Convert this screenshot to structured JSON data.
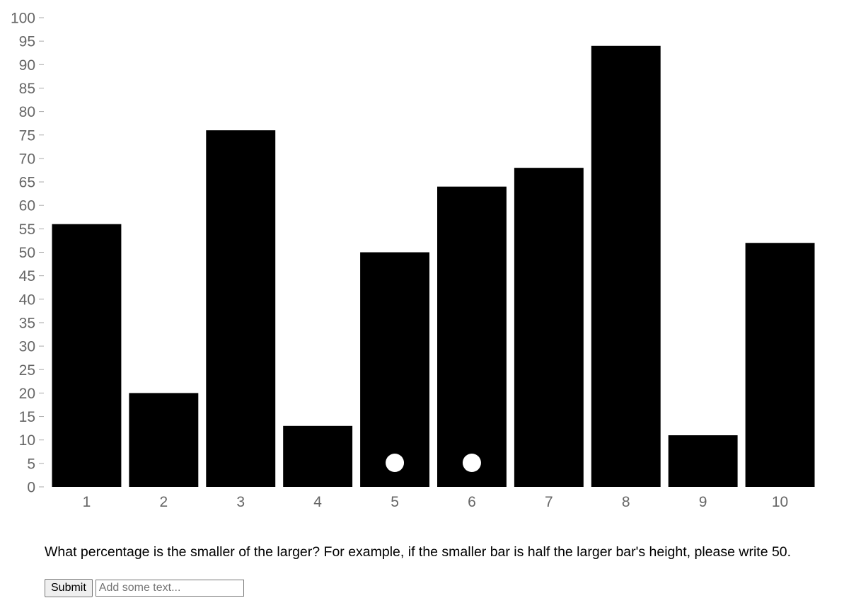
{
  "chart_data": {
    "type": "bar",
    "categories": [
      "1",
      "2",
      "3",
      "4",
      "5",
      "6",
      "7",
      "8",
      "9",
      "10"
    ],
    "values": [
      56,
      20,
      76,
      13,
      50,
      64,
      68,
      94,
      11,
      52
    ],
    "ylim": [
      0,
      100
    ],
    "yticks": [
      "0",
      "5",
      "10",
      "15",
      "20",
      "25",
      "30",
      "35",
      "40",
      "45",
      "50",
      "55",
      "60",
      "65",
      "70",
      "75",
      "80",
      "85",
      "90",
      "95",
      "100"
    ],
    "marked_categories": [
      "5",
      "6"
    ],
    "bar_color": "#000000",
    "marker_color": "#ffffff",
    "title": "",
    "xlabel": "",
    "ylabel": "",
    "grid": false
  },
  "question": "What percentage is the smaller of the larger? For example, if the smaller bar is half the larger bar's height, please write 50.",
  "form": {
    "submit_label": "Submit",
    "input_placeholder": "Add some text..."
  }
}
